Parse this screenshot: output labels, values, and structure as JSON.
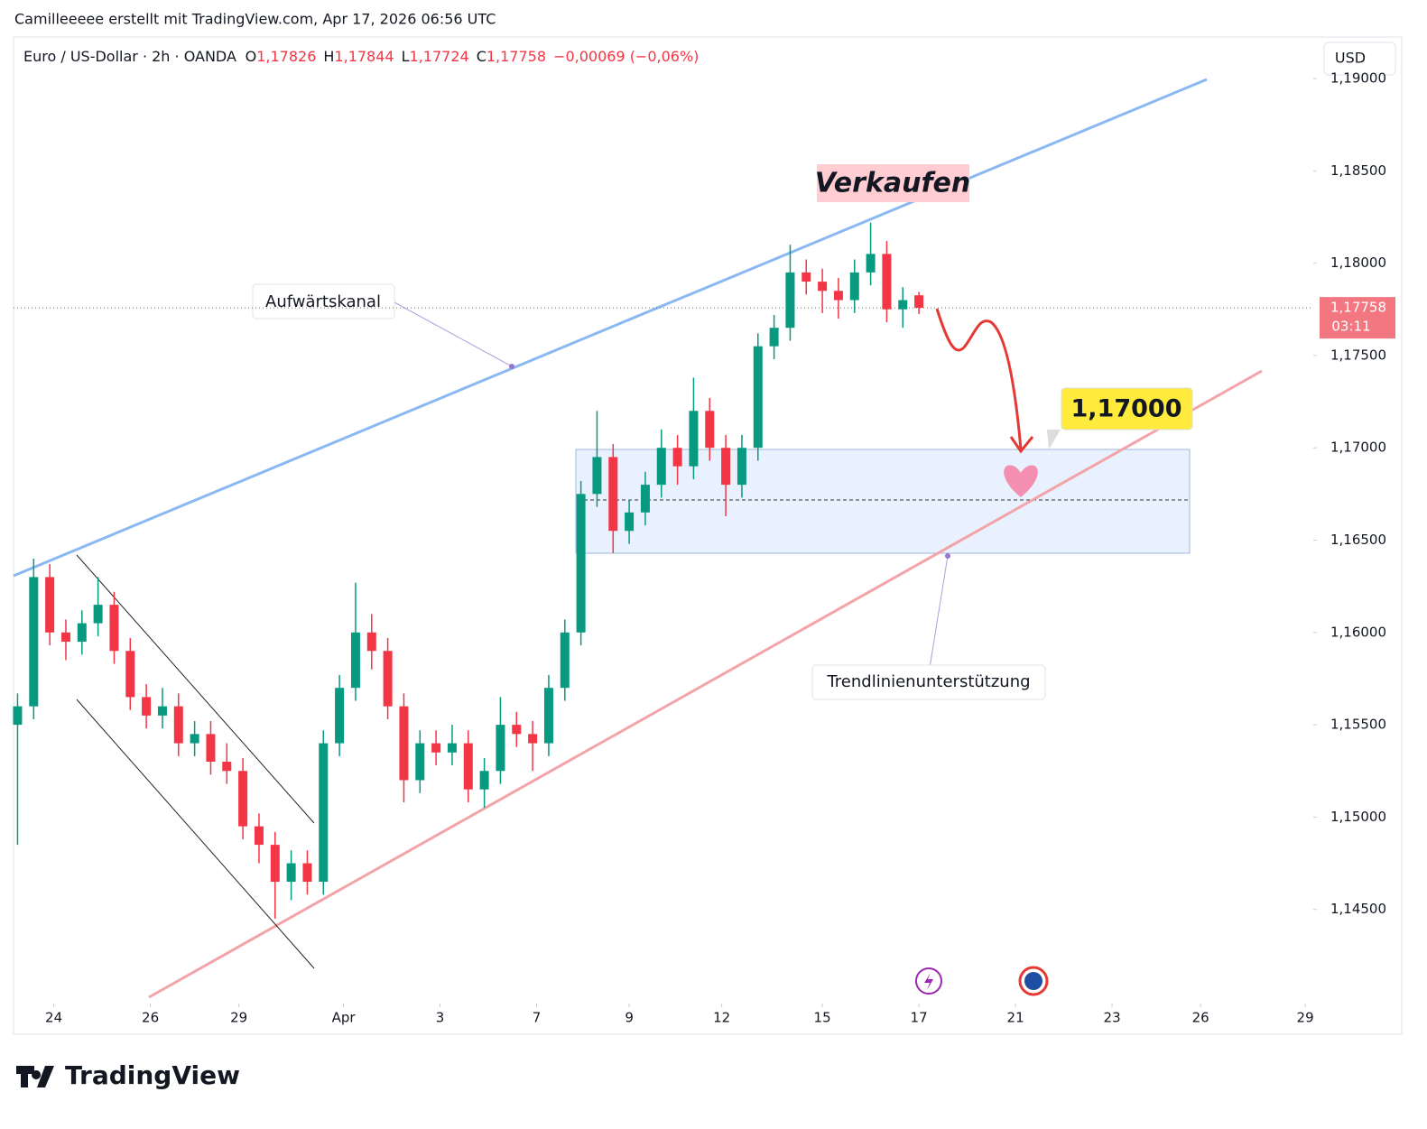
{
  "header": {
    "attribution": "Camilleeeee erstellt mit TradingView.com, Apr 17, 2026 06:56 UTC",
    "brand": "TradingView"
  },
  "chart_data": {
    "type": "candlestick",
    "legend": {
      "symbol": "Euro / US-Dollar · 2h · OANDA",
      "ohlc": [
        {
          "key": "O",
          "text": "1,17826"
        },
        {
          "key": "H",
          "text": "1,17844"
        },
        {
          "key": "L",
          "text": "1,17724"
        },
        {
          "key": "C",
          "text": "1,17758"
        }
      ],
      "change": "−0,00069 (−0,06%)"
    },
    "currency": "USD",
    "countdown": "03:11",
    "annotations": {
      "sell": "Verkaufen",
      "channel": "Aufwärtskanal",
      "target": "1,17000",
      "support": "Trendlinienunterstützung"
    },
    "up_color": "#089981",
    "down_color": "#f23645",
    "xlim": [
      0,
      323
    ],
    "ylim": [
      1.14,
      1.1922
    ],
    "xticks": [
      {
        "value": 10,
        "label": "24"
      },
      {
        "value": 34,
        "label": "26"
      },
      {
        "value": 56,
        "label": "29"
      },
      {
        "value": 82,
        "label": "Apr"
      },
      {
        "value": 106,
        "label": "3"
      },
      {
        "value": 130,
        "label": "7"
      },
      {
        "value": 153,
        "label": "9"
      },
      {
        "value": 176,
        "label": "12"
      },
      {
        "value": 201,
        "label": "15"
      },
      {
        "value": 225,
        "label": "17"
      },
      {
        "value": 249,
        "label": "21"
      },
      {
        "value": 273,
        "label": "23"
      },
      {
        "value": 295,
        "label": "26"
      },
      {
        "value": 321,
        "label": "29"
      }
    ],
    "yticks": [
      {
        "value": 1.145,
        "label": "1,14500"
      },
      {
        "value": 1.15,
        "label": "1,15000"
      },
      {
        "value": 1.155,
        "label": "1,15500"
      },
      {
        "value": 1.16,
        "label": "1,16000"
      },
      {
        "value": 1.165,
        "label": "1,16500"
      },
      {
        "value": 1.17,
        "label": "1,17000"
      },
      {
        "value": 1.175,
        "label": "1,17500"
      },
      {
        "value": 1.18,
        "label": "1,18000"
      },
      {
        "value": 1.185,
        "label": "1,18500"
      },
      {
        "value": 1.19,
        "label": "1,19000"
      }
    ],
    "series": [
      {
        "name": "EURUSD",
        "x": [
          1,
          5,
          9,
          13,
          17,
          21,
          25,
          29,
          33,
          37,
          41,
          45,
          49,
          53,
          57,
          61,
          65,
          69,
          73,
          77,
          81,
          85,
          89,
          93,
          97,
          101,
          105,
          109,
          113,
          117,
          121,
          125,
          129,
          133,
          137,
          141,
          145,
          149,
          153,
          157,
          161,
          165,
          169,
          173,
          177,
          181,
          185,
          189,
          193,
          197,
          201,
          205,
          209,
          213,
          217,
          221,
          225
        ],
        "open": [
          1.155,
          1.156,
          1.163,
          1.16,
          1.1595,
          1.1605,
          1.1615,
          1.159,
          1.1565,
          1.1555,
          1.156,
          1.154,
          1.1545,
          1.153,
          1.1525,
          1.1495,
          1.1485,
          1.1465,
          1.1475,
          1.1465,
          1.154,
          1.157,
          1.16,
          1.159,
          1.156,
          1.152,
          1.154,
          1.1535,
          1.154,
          1.1515,
          1.1525,
          1.155,
          1.1545,
          1.154,
          1.157,
          1.16,
          1.1675,
          1.1695,
          1.1655,
          1.1665,
          1.168,
          1.17,
          1.169,
          1.172,
          1.17,
          1.168,
          1.17,
          1.1755,
          1.1765,
          1.1795,
          1.179,
          1.1785,
          1.178,
          1.1795,
          1.1805,
          1.1775,
          1.17826
        ],
        "high": [
          1.1567,
          1.164,
          1.1637,
          1.1607,
          1.1612,
          1.163,
          1.1622,
          1.1597,
          1.1572,
          1.157,
          1.1567,
          1.1552,
          1.1552,
          1.154,
          1.1532,
          1.1502,
          1.1492,
          1.1482,
          1.1482,
          1.1547,
          1.1577,
          1.1627,
          1.161,
          1.1597,
          1.1567,
          1.1547,
          1.1547,
          1.155,
          1.1547,
          1.1532,
          1.1565,
          1.1557,
          1.1552,
          1.1577,
          1.1607,
          1.1682,
          1.172,
          1.1702,
          1.1672,
          1.1687,
          1.171,
          1.1707,
          1.1738,
          1.1727,
          1.1707,
          1.1707,
          1.1762,
          1.1772,
          1.181,
          1.1802,
          1.1797,
          1.1792,
          1.1802,
          1.1822,
          1.1812,
          1.1787,
          1.17844
        ],
        "low": [
          1.1485,
          1.1553,
          1.1593,
          1.1585,
          1.1588,
          1.1598,
          1.1583,
          1.1558,
          1.1548,
          1.1548,
          1.1533,
          1.1533,
          1.1523,
          1.1518,
          1.1488,
          1.1475,
          1.1445,
          1.1455,
          1.1458,
          1.1458,
          1.1533,
          1.1563,
          1.158,
          1.1553,
          1.1508,
          1.1513,
          1.1528,
          1.1528,
          1.1508,
          1.1505,
          1.1518,
          1.1538,
          1.1525,
          1.1533,
          1.1563,
          1.1593,
          1.1668,
          1.1643,
          1.1648,
          1.1658,
          1.1673,
          1.168,
          1.1683,
          1.1693,
          1.1663,
          1.1673,
          1.1693,
          1.1748,
          1.1758,
          1.1783,
          1.1773,
          1.177,
          1.1773,
          1.1788,
          1.1768,
          1.1765,
          1.17724
        ],
        "close": [
          1.156,
          1.163,
          1.16,
          1.1595,
          1.1605,
          1.1615,
          1.159,
          1.1565,
          1.1555,
          1.156,
          1.154,
          1.1545,
          1.153,
          1.1525,
          1.1495,
          1.1485,
          1.1465,
          1.1475,
          1.1465,
          1.154,
          1.157,
          1.16,
          1.159,
          1.156,
          1.152,
          1.154,
          1.1535,
          1.154,
          1.1515,
          1.1525,
          1.155,
          1.1545,
          1.154,
          1.157,
          1.16,
          1.1675,
          1.1695,
          1.1655,
          1.1665,
          1.168,
          1.17,
          1.169,
          1.172,
          1.17,
          1.168,
          1.17,
          1.1755,
          1.1765,
          1.1795,
          1.179,
          1.1785,
          1.178,
          1.1795,
          1.1805,
          1.1775,
          1.178,
          1.17758
        ]
      }
    ]
  }
}
